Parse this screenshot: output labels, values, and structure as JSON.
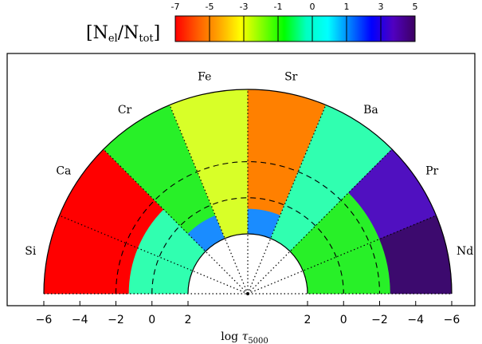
{
  "chart_data": {
    "type": "heatmap",
    "layout": "semicircular abundance-stratification map",
    "colorbar": {
      "title_main": "N",
      "title_sub_num": "el",
      "title_sep": "/N",
      "title_sub_den": "tot",
      "ticks": [
        "-7",
        "-5",
        "-3",
        "-1",
        "0",
        "1",
        "3",
        "5"
      ],
      "range": [
        -7,
        5
      ],
      "palette": [
        "#ff0000",
        "#ff5a00",
        "#ffa500",
        "#ffff00",
        "#80ff00",
        "#00ff00",
        "#00ffc0",
        "#00ffff",
        "#0080ff",
        "#0000ff",
        "#5000c0",
        "#3c0060"
      ]
    },
    "radial_axis": {
      "label_main": "log ",
      "label_tau": "τ",
      "label_sub": "5000",
      "left_ticks": [
        {
          "v": -6,
          "t": "−6"
        },
        {
          "v": -4,
          "t": "−4"
        },
        {
          "v": -2,
          "t": "−2"
        },
        {
          "v": 0,
          "t": "0"
        },
        {
          "v": 2,
          "t": "2"
        }
      ],
      "right_ticks": [
        {
          "v": 2,
          "t": "2"
        },
        {
          "v": 0,
          "t": "0"
        },
        {
          "v": -2,
          "t": "−2"
        },
        {
          "v": -4,
          "t": "−4"
        },
        {
          "v": -6,
          "t": "−6"
        }
      ],
      "range": [
        2,
        -6
      ],
      "dashed_levels": [
        0,
        -2
      ]
    },
    "elements": [
      {
        "name": "Si",
        "zones": [
          {
            "from": 2,
            "to": -1.3,
            "color": "#30ffb0"
          },
          {
            "from": -1.3,
            "to": -6,
            "color": "#ff0000"
          }
        ]
      },
      {
        "name": "Ca",
        "zones": [
          {
            "from": 2,
            "to": -1.3,
            "color": "#30ffb0"
          },
          {
            "from": -1.3,
            "to": -6,
            "color": "#ff0000"
          }
        ]
      },
      {
        "name": "Cr",
        "zones": [
          {
            "from": 2,
            "to": 0.6,
            "color": "#1a8cff"
          },
          {
            "from": 0.6,
            "to": -6,
            "color": "#28f028"
          }
        ]
      },
      {
        "name": "Fe",
        "zones": [
          {
            "from": 2,
            "to": -6,
            "color": "#d8ff28"
          }
        ]
      },
      {
        "name": "Sr",
        "zones": [
          {
            "from": 2,
            "to": 0.6,
            "color": "#1a8cff"
          },
          {
            "from": 0.6,
            "to": -6,
            "color": "#ff8000"
          }
        ]
      },
      {
        "name": "Ba",
        "zones": [
          {
            "from": 2,
            "to": -6,
            "color": "#30ffb0"
          }
        ]
      },
      {
        "name": "Pr",
        "zones": [
          {
            "from": 2,
            "to": -2.6,
            "color": "#28f028"
          },
          {
            "from": -2.6,
            "to": -6,
            "color": "#5010c0"
          }
        ]
      },
      {
        "name": "Nd",
        "zones": [
          {
            "from": 2,
            "to": -2.6,
            "color": "#28f028"
          },
          {
            "from": -2.6,
            "to": -6,
            "color": "#3c0a6e"
          }
        ]
      }
    ]
  }
}
